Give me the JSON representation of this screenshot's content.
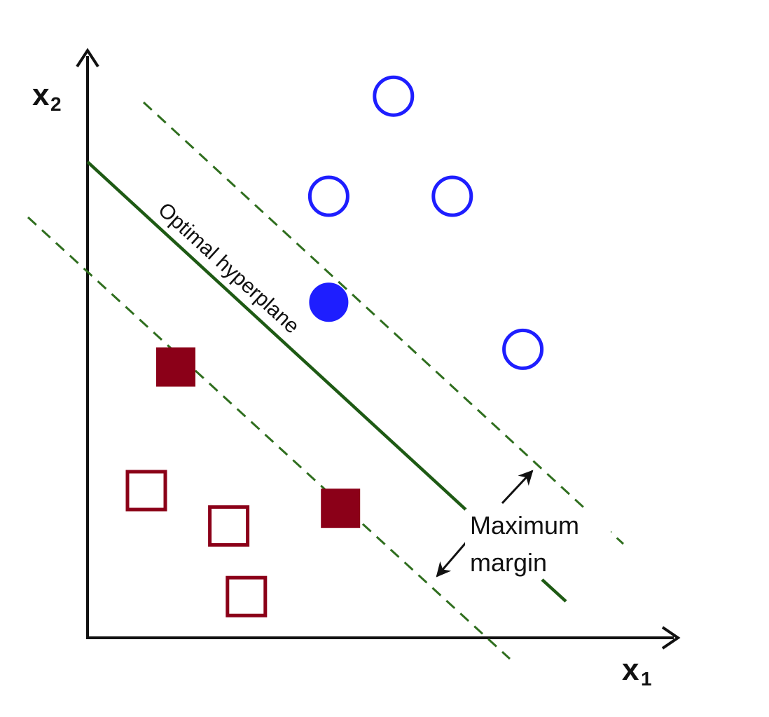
{
  "axes": {
    "x_label_main": "x",
    "x_label_sub": "1",
    "y_label_main": "x",
    "y_label_sub": "2"
  },
  "labels": {
    "hyperplane": "Optimal hyperplane",
    "margin_line1": "Maximum",
    "margin_line2": "margin"
  },
  "classes": {
    "circles": {
      "color": "#1e1eff",
      "points": [
        {
          "x": 0.52,
          "y": 0.92,
          "support_vector": false
        },
        {
          "x": 0.41,
          "y": 0.75,
          "support_vector": false
        },
        {
          "x": 0.62,
          "y": 0.75,
          "support_vector": false
        },
        {
          "x": 0.41,
          "y": 0.57,
          "support_vector": true
        },
        {
          "x": 0.74,
          "y": 0.49,
          "support_vector": false
        }
      ]
    },
    "squares": {
      "color": "#8b0018",
      "points": [
        {
          "x": 0.15,
          "y": 0.46,
          "support_vector": true
        },
        {
          "x": 0.43,
          "y": 0.22,
          "support_vector": true
        },
        {
          "x": 0.1,
          "y": 0.25,
          "support_vector": false
        },
        {
          "x": 0.24,
          "y": 0.19,
          "support_vector": false
        },
        {
          "x": 0.27,
          "y": 0.07,
          "support_vector": false
        }
      ]
    }
  },
  "colors": {
    "hyperplane": "#1e5a14",
    "margin_lines": "#2f6e1e",
    "axes": "#111111"
  }
}
